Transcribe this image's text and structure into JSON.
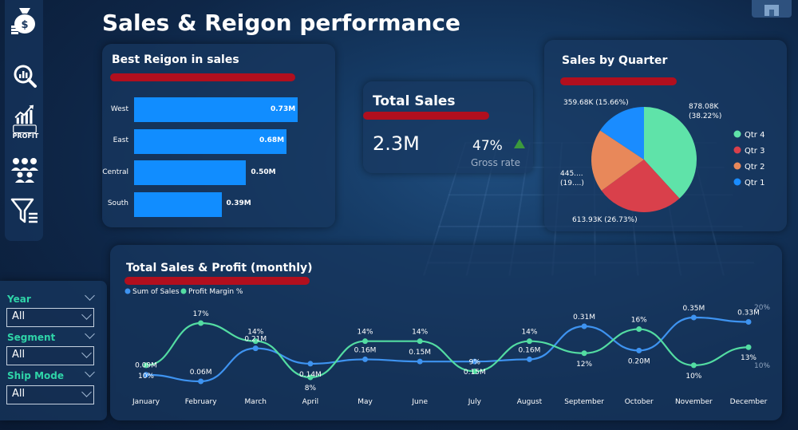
{
  "title": "Sales & Reigon performance",
  "colors": {
    "accent_red": "#b10f1e",
    "bar_blue": "#118dff",
    "sales_line": "#3e93f0",
    "margin_line": "#53dca2"
  },
  "sidebar": {
    "icons": [
      "money-bag-icon",
      "search-chart-icon",
      "profit-icon",
      "people-icon",
      "filter-icon"
    ],
    "profit_label": "PROFIT"
  },
  "filters": {
    "year": {
      "label": "Year",
      "value": "All"
    },
    "segment": {
      "label": "Segment",
      "value": "All"
    },
    "ship_mode": {
      "label": "Ship Mode",
      "value": "All"
    }
  },
  "kpi": {
    "title": "Total Sales",
    "value": "2.3M",
    "gross_rate": "47%",
    "gross_label": "Gross rate",
    "trend": "up"
  },
  "chart_data": [
    {
      "id": "region",
      "type": "bar",
      "orientation": "horizontal",
      "title": "Best Reigon in sales",
      "categories": [
        "West",
        "East",
        "Central",
        "South"
      ],
      "values": [
        0.73,
        0.68,
        0.5,
        0.39
      ],
      "labels": [
        "0.73M",
        "0.68M",
        "0.50M",
        "0.39M"
      ],
      "unit": "M"
    },
    {
      "id": "quarter",
      "type": "pie",
      "title": "Sales by Quarter",
      "legend": [
        "Qtr 4",
        "Qtr 3",
        "Qtr 2",
        "Qtr 1"
      ],
      "legend_position": "right",
      "slices": [
        {
          "name": "Qtr 4",
          "value": 878.08,
          "pct": 38.22,
          "color": "#5fe3a9",
          "label": "878.08K",
          "pct_label": "(38.22%)"
        },
        {
          "name": "Qtr 3",
          "value": 613.93,
          "pct": 26.73,
          "color": "#d9404b",
          "label": "613.93K (26.73%)"
        },
        {
          "name": "Qtr 2",
          "value": 445.25,
          "pct": 19.39,
          "color": "#e8885a",
          "label": "445....",
          "pct_label": "(19....)"
        },
        {
          "name": "Qtr 1",
          "value": 359.68,
          "pct": 15.66,
          "color": "#1a8cff",
          "label": "359.68K (15.66%)"
        }
      ]
    },
    {
      "id": "monthly",
      "type": "line",
      "title": "Total Sales & Profit (monthly)",
      "legend_position": "top-left",
      "x": [
        "January",
        "February",
        "March",
        "April",
        "May",
        "June",
        "July",
        "August",
        "September",
        "October",
        "November",
        "December"
      ],
      "series": [
        {
          "name": "Sum of Sales",
          "color": "#3e93f0",
          "values": [
            0.09,
            0.06,
            0.21,
            0.14,
            0.16,
            0.15,
            0.15,
            0.16,
            0.31,
            0.2,
            0.35,
            0.33
          ],
          "labels": [
            "0.09M",
            "0.06M",
            "0.21M",
            "0.14M",
            "0.16M",
            "0.15M",
            "0.15M",
            "0.16M",
            "0.31M",
            "0.20M",
            "0.35M",
            "0.33M"
          ]
        },
        {
          "name": "Profit Margin %",
          "color": "#53dca2",
          "values": [
            10,
            17,
            14,
            8,
            14,
            14,
            9,
            14,
            12,
            16,
            10,
            13
          ],
          "labels": [
            "10%",
            "17%",
            "14%",
            "8%",
            "14%",
            "14%",
            "9%",
            "14%",
            "12%",
            "16%",
            "10%",
            "13%"
          ]
        }
      ],
      "y2_ticks": [
        "20%",
        "10%"
      ],
      "y2_tick_values": [
        20,
        10
      ]
    }
  ]
}
